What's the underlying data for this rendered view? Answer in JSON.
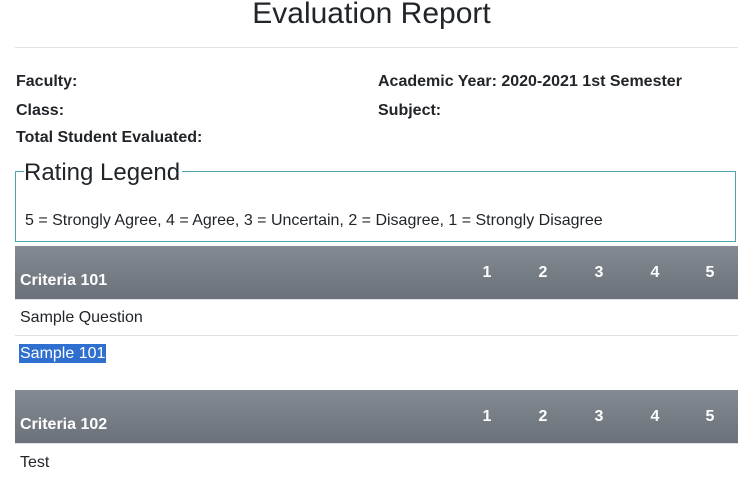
{
  "report": {
    "title": "Evaluation Report",
    "faculty_label": "Faculty:",
    "academic_year_label": "Academic Year: 2020-2021 1st Semester",
    "class_label": "Class:",
    "subject_label": "Subject:",
    "total_label": "Total Student Evaluated:"
  },
  "legend": {
    "title": "Rating Legend",
    "text": "5 = Strongly Agree, 4 = Agree, 3 = Uncertain, 2 = Disagree, 1 = Strongly Disagree"
  },
  "ratings": [
    "1",
    "2",
    "3",
    "4",
    "5"
  ],
  "criteria": [
    {
      "name": "Criteria 101",
      "questions": [
        "Sample Question",
        "Sample 101"
      ]
    },
    {
      "name": "Criteria 102",
      "questions": [
        "Test"
      ]
    }
  ],
  "colors": {
    "header_top": "#848a92",
    "header_bottom": "#6b7178",
    "selection": "#2f6fd0",
    "legend_border": "#4fa3b3"
  }
}
